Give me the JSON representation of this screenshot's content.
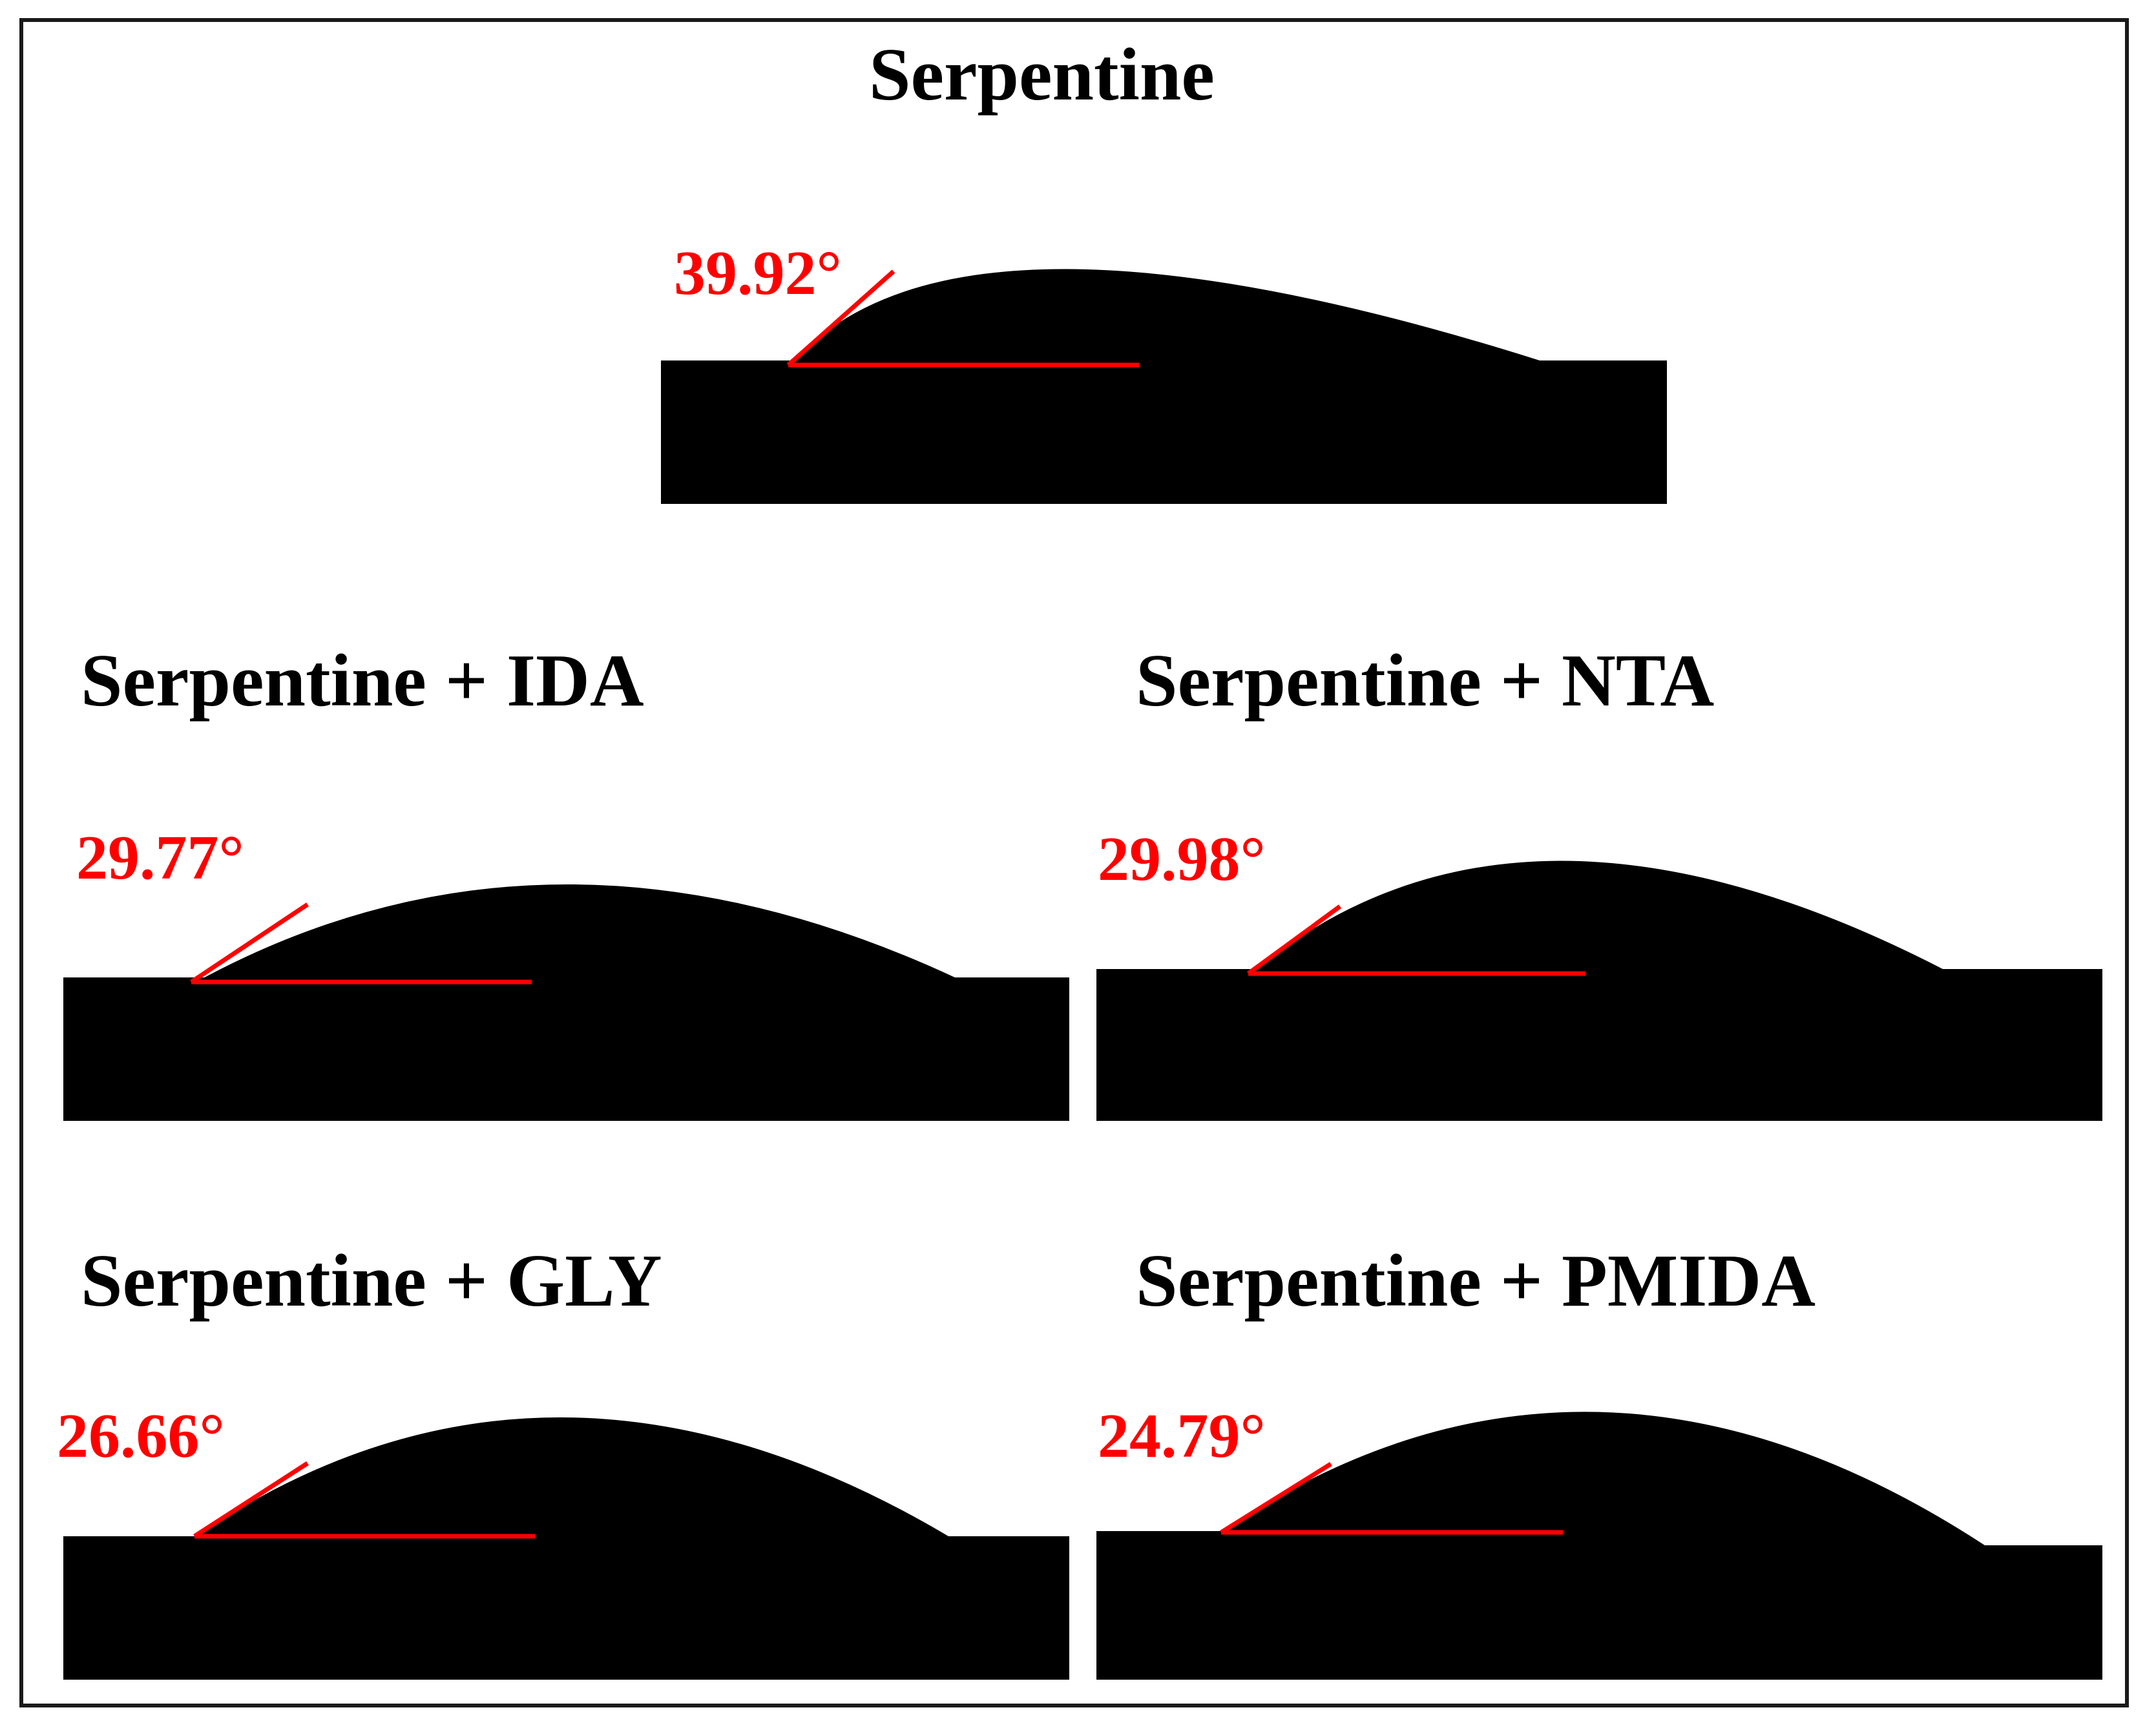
{
  "figure": {
    "accent_color": "#ff0000",
    "background_color": "#ffffff",
    "drop_color": "#000000",
    "panels": [
      {
        "id": "serpentine",
        "title": "Serpentine",
        "contact_angle": "39.92°"
      },
      {
        "id": "ida",
        "title": "Serpentine + IDA",
        "contact_angle": "29.77°"
      },
      {
        "id": "nta",
        "title": "Serpentine + NTA",
        "contact_angle": "29.98°"
      },
      {
        "id": "gly",
        "title": "Serpentine + GLY",
        "contact_angle": "26.66°"
      },
      {
        "id": "pmida",
        "title": "Serpentine + PMIDA",
        "contact_angle": "24.79°"
      }
    ]
  }
}
